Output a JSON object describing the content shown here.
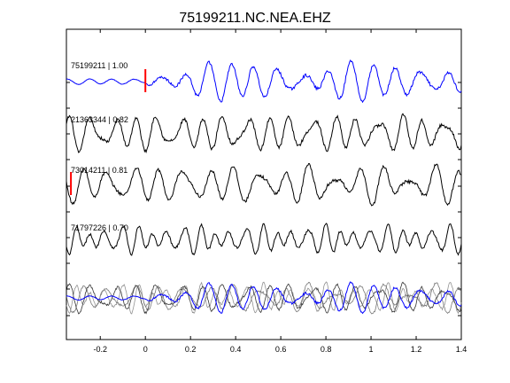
{
  "chart_data": {
    "type": "line",
    "title": "75199211.NC.NEA.EHZ",
    "xlabel": "",
    "ylabel": "",
    "xlim": [
      -0.35,
      1.4
    ],
    "xticks": [
      -0.2,
      0,
      0.2,
      0.4,
      0.6,
      0.8,
      1,
      1.2,
      1.4
    ],
    "xtick_labels": [
      "-0.2",
      "0",
      "0.2",
      "0.4",
      "0.6",
      "0.8",
      "1",
      "1.2",
      "1.4"
    ],
    "grid": false,
    "traces": [
      {
        "label": "75199211 | 1.00",
        "color": "#0000ff",
        "pick_time": 0.0,
        "pick_color": "#ff0000",
        "amplitude": 1.0
      },
      {
        "label": "21363344 | 0.82",
        "color": "#000000",
        "amplitude": 1.0
      },
      {
        "label": "73014211 | 0.81",
        "color": "#000000",
        "pick_time": -0.33,
        "pick_color": "#ff0000",
        "amplitude": 1.0
      },
      {
        "label": "71797226 | 0.70",
        "color": "#000000",
        "amplitude": 1.0
      }
    ],
    "stack": {
      "colors": [
        "#000000",
        "#555555",
        "#777777",
        "#0000ff"
      ]
    }
  }
}
